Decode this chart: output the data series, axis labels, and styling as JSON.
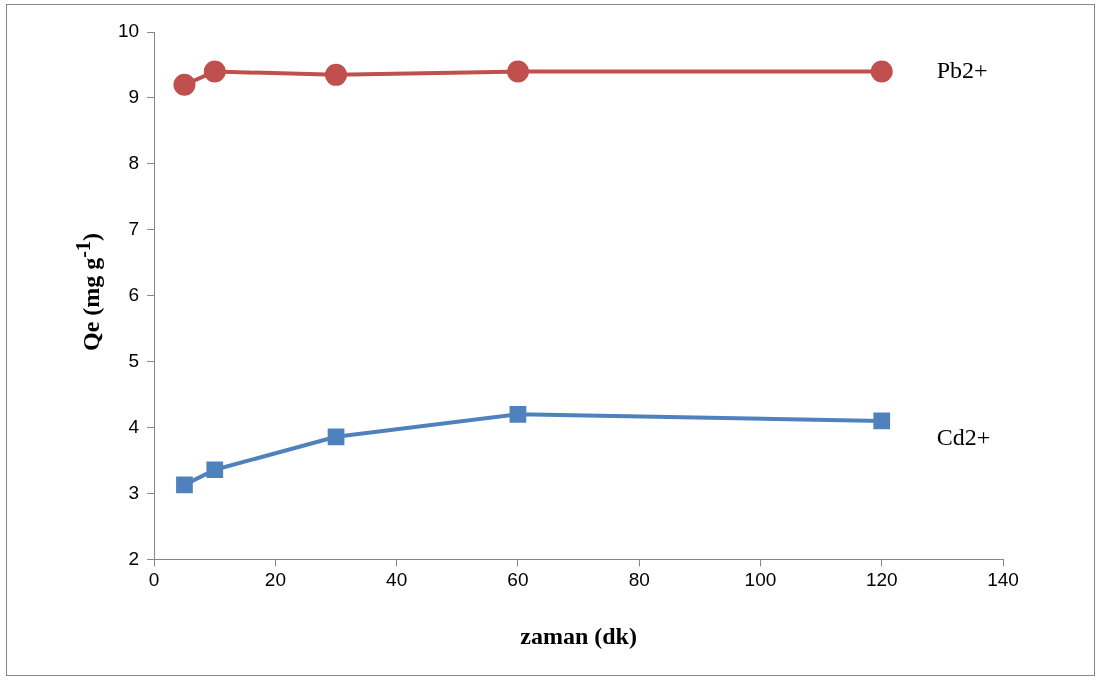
{
  "chart_data": {
    "type": "line",
    "xlabel": "zaman (dk)",
    "ylabel": "Qe (mg g$^{-1}$)",
    "x": [
      5,
      10,
      30,
      60,
      120
    ],
    "series": [
      {
        "name": "Pb2+",
        "color": "#c0504d",
        "marker": "circle",
        "values": [
          9.2,
          9.4,
          9.35,
          9.4,
          9.4
        ]
      },
      {
        "name": "Cd2+",
        "color": "#4f81bd",
        "marker": "square",
        "values": [
          3.13,
          3.36,
          3.86,
          4.2,
          4.1
        ]
      }
    ],
    "xlim": [
      0,
      140
    ],
    "xticks": [
      0,
      20,
      40,
      60,
      80,
      100,
      120,
      140
    ],
    "ylim": [
      2,
      10
    ],
    "yticks": [
      2,
      3,
      4,
      5,
      6,
      7,
      8,
      9,
      10
    ],
    "grid": false,
    "legend": false,
    "line_style": "solid"
  }
}
